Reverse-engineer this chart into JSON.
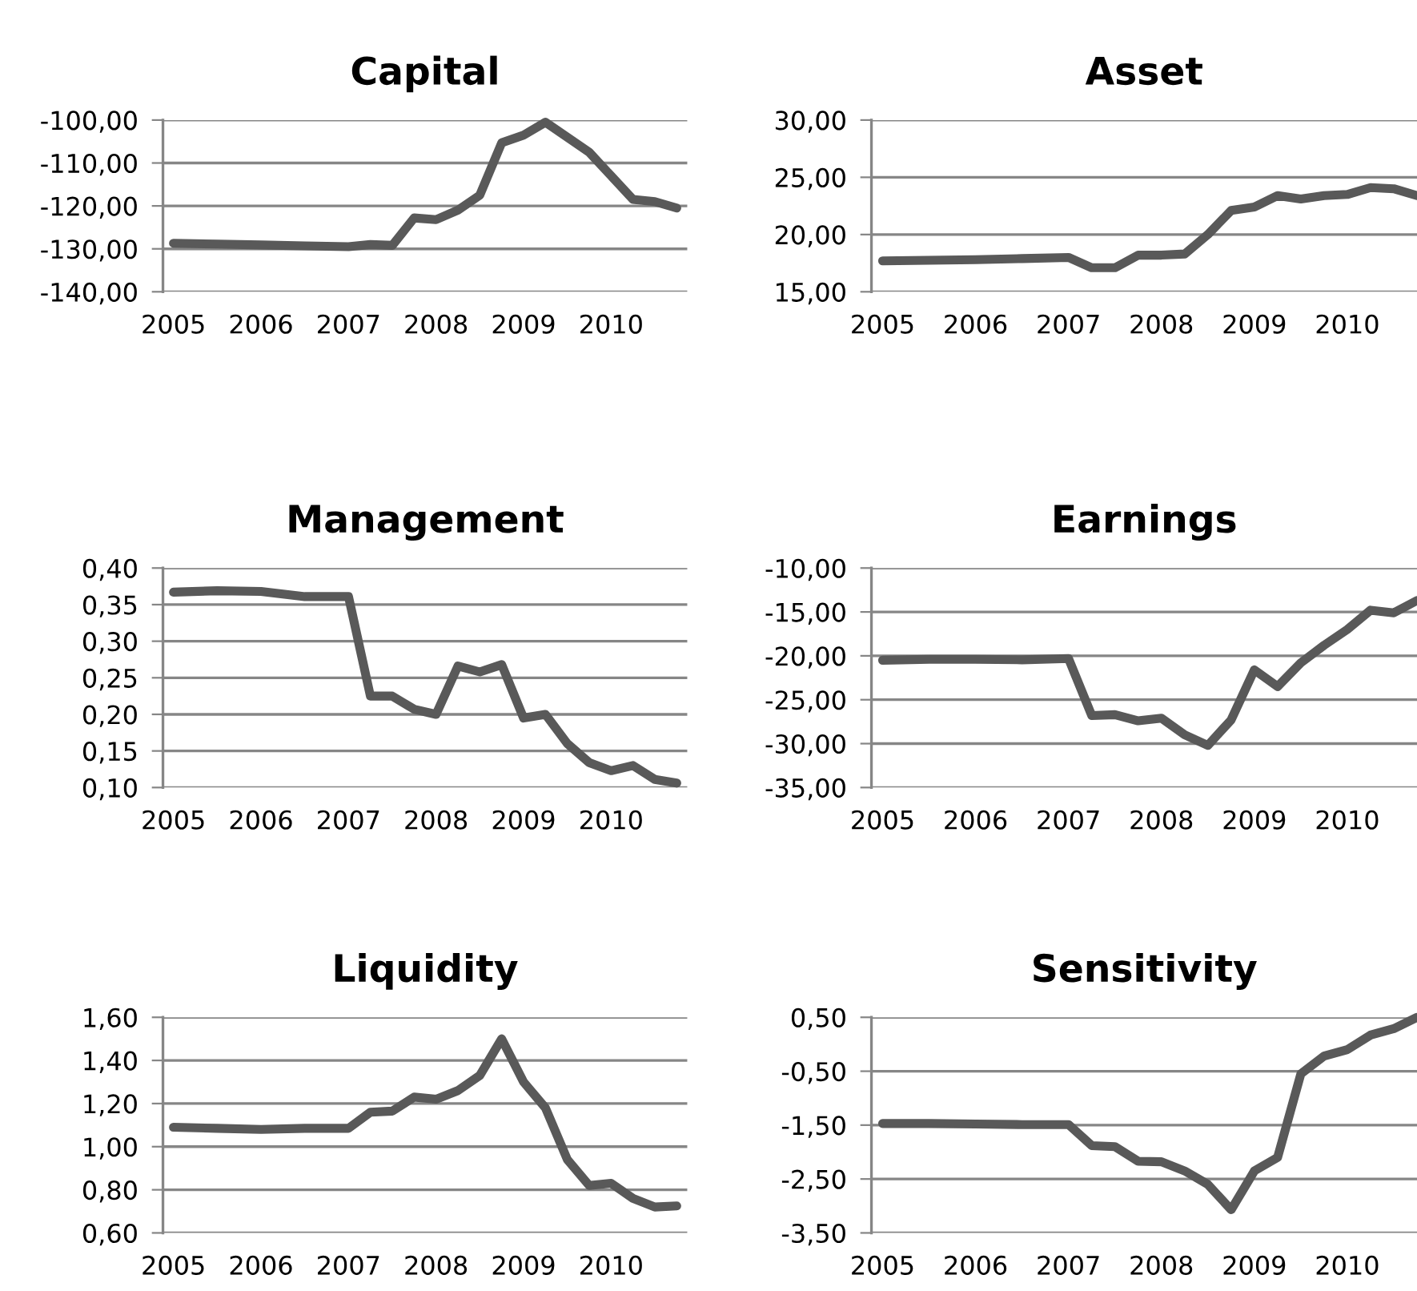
{
  "chart_data": [
    {
      "type": "line",
      "title": "Capital",
      "x": [
        2005,
        2005.5,
        2006,
        2006.5,
        2007,
        2007.25,
        2007.5,
        2007.75,
        2008,
        2008.25,
        2008.5,
        2008.75,
        2009,
        2009.25,
        2009.5,
        2009.75,
        2010,
        2010.25,
        2010.5,
        2010.75
      ],
      "series": [
        {
          "color": "#595959",
          "values": [
            -128.7,
            -128.9,
            -129.1,
            -129.3,
            -129.5,
            -129.0,
            -129.2,
            -122.8,
            -123.2,
            -121.0,
            -117.5,
            -105.3,
            -103.5,
            -100.5,
            -104.0,
            -107.5,
            -113.0,
            -118.5,
            -119.0,
            -120.5
          ]
        }
      ],
      "xlim": [
        2004.88,
        2010.87
      ],
      "xticks": [
        2005,
        2006,
        2007,
        2008,
        2009,
        2010
      ],
      "ylim": [
        -140,
        -100
      ],
      "yticks": [
        {
          "value": -140,
          "label": "-140,00"
        },
        {
          "value": -130,
          "label": "-130,00"
        },
        {
          "value": -120,
          "label": "-120,00"
        },
        {
          "value": -110,
          "label": "-110,00"
        },
        {
          "value": -100,
          "label": "-100,00"
        }
      ],
      "grid": "y",
      "line_style": "solid",
      "marker": "none"
    },
    {
      "type": "line",
      "title": "Asset",
      "x": [
        2005,
        2005.5,
        2006,
        2006.5,
        2007,
        2007.25,
        2007.5,
        2007.75,
        2008,
        2008.25,
        2008.5,
        2008.75,
        2009,
        2009.25,
        2009.5,
        2009.75,
        2010,
        2010.25,
        2010.5,
        2010.75
      ],
      "series": [
        {
          "color": "#595959",
          "values": [
            17.7,
            17.75,
            17.8,
            17.9,
            18.0,
            17.1,
            17.1,
            18.2,
            18.2,
            18.3,
            20.0,
            22.1,
            22.4,
            23.4,
            23.1,
            23.4,
            23.5,
            24.1,
            24.0,
            23.4
          ]
        }
      ],
      "xlim": [
        2004.88,
        2010.75
      ],
      "xticks": [
        2005,
        2006,
        2007,
        2008,
        2009,
        2010
      ],
      "ylim": [
        15,
        30
      ],
      "yticks": [
        {
          "value": 15,
          "label": "15,00"
        },
        {
          "value": 20,
          "label": "20,00"
        },
        {
          "value": 25,
          "label": "25,00"
        },
        {
          "value": 30,
          "label": "30,00"
        }
      ],
      "grid": "y",
      "line_style": "solid",
      "marker": "none"
    },
    {
      "type": "line",
      "title": "Management",
      "x": [
        2005,
        2005.5,
        2006,
        2006.5,
        2007,
        2007.25,
        2007.5,
        2007.75,
        2008,
        2008.25,
        2008.5,
        2008.75,
        2009,
        2009.25,
        2009.5,
        2009.75,
        2010,
        2010.25,
        2010.5,
        2010.75
      ],
      "series": [
        {
          "color": "#595959",
          "values": [
            0.367,
            0.369,
            0.368,
            0.361,
            0.361,
            0.225,
            0.225,
            0.207,
            0.2,
            0.266,
            0.258,
            0.268,
            0.195,
            0.2,
            0.16,
            0.134,
            0.123,
            0.13,
            0.111,
            0.106
          ]
        }
      ],
      "xlim": [
        2004.88,
        2010.87
      ],
      "xticks": [
        2005,
        2006,
        2007,
        2008,
        2009,
        2010
      ],
      "ylim": [
        0.1,
        0.4
      ],
      "yticks": [
        {
          "value": 0.1,
          "label": "0,10"
        },
        {
          "value": 0.15,
          "label": "0,15"
        },
        {
          "value": 0.2,
          "label": "0,20"
        },
        {
          "value": 0.25,
          "label": "0,25"
        },
        {
          "value": 0.3,
          "label": "0,30"
        },
        {
          "value": 0.35,
          "label": "0,35"
        },
        {
          "value": 0.4,
          "label": "0,40"
        }
      ],
      "grid": "y",
      "line_style": "solid",
      "marker": "none"
    },
    {
      "type": "line",
      "title": "Earnings",
      "x": [
        2005,
        2005.5,
        2006,
        2006.5,
        2007,
        2007.25,
        2007.5,
        2007.75,
        2008,
        2008.25,
        2008.5,
        2008.75,
        2009,
        2009.25,
        2009.5,
        2009.75,
        2010,
        2010.25,
        2010.5,
        2010.75
      ],
      "series": [
        {
          "color": "#595959",
          "values": [
            -20.5,
            -20.4,
            -20.4,
            -20.45,
            -20.3,
            -26.8,
            -26.7,
            -27.4,
            -27.1,
            -29.0,
            -30.2,
            -27.3,
            -21.6,
            -23.5,
            -20.8,
            -18.8,
            -17.0,
            -14.8,
            -15.1,
            -13.7
          ]
        }
      ],
      "xlim": [
        2004.88,
        2010.75
      ],
      "xticks": [
        2005,
        2006,
        2007,
        2008,
        2009,
        2010
      ],
      "ylim": [
        -35,
        -10
      ],
      "yticks": [
        {
          "value": -35,
          "label": "-35,00"
        },
        {
          "value": -30,
          "label": "-30,00"
        },
        {
          "value": -25,
          "label": "-25,00"
        },
        {
          "value": -20,
          "label": "-20,00"
        },
        {
          "value": -15,
          "label": "-15,00"
        },
        {
          "value": -10,
          "label": "-10,00"
        }
      ],
      "grid": "y",
      "line_style": "solid",
      "marker": "none"
    },
    {
      "type": "line",
      "title": "Liquidity",
      "x": [
        2005,
        2005.5,
        2006,
        2006.5,
        2007,
        2007.25,
        2007.5,
        2007.75,
        2008,
        2008.25,
        2008.5,
        2008.75,
        2009,
        2009.25,
        2009.5,
        2009.75,
        2010,
        2010.25,
        2010.5,
        2010.75
      ],
      "series": [
        {
          "color": "#595959",
          "values": [
            1.09,
            1.085,
            1.08,
            1.085,
            1.085,
            1.16,
            1.165,
            1.23,
            1.22,
            1.26,
            1.33,
            1.5,
            1.3,
            1.18,
            0.94,
            0.82,
            0.83,
            0.76,
            0.72,
            0.725
          ]
        }
      ],
      "xlim": [
        2004.88,
        2010.87
      ],
      "xticks": [
        2005,
        2006,
        2007,
        2008,
        2009,
        2010
      ],
      "ylim": [
        0.6,
        1.6
      ],
      "yticks": [
        {
          "value": 0.6,
          "label": "0,60"
        },
        {
          "value": 0.8,
          "label": "0,80"
        },
        {
          "value": 1.0,
          "label": "1,00"
        },
        {
          "value": 1.2,
          "label": "1,20"
        },
        {
          "value": 1.4,
          "label": "1,40"
        },
        {
          "value": 1.6,
          "label": "1,60"
        }
      ],
      "grid": "y",
      "line_style": "solid",
      "marker": "none"
    },
    {
      "type": "line",
      "title": "Sensitivity",
      "x": [
        2005,
        2005.5,
        2006,
        2006.5,
        2007,
        2007.25,
        2007.5,
        2007.75,
        2008,
        2008.25,
        2008.5,
        2008.75,
        2009,
        2009.25,
        2009.5,
        2009.75,
        2010,
        2010.25,
        2010.5,
        2010.75
      ],
      "series": [
        {
          "color": "#595959",
          "values": [
            -1.47,
            -1.47,
            -1.48,
            -1.49,
            -1.49,
            -1.88,
            -1.9,
            -2.17,
            -2.18,
            -2.35,
            -2.6,
            -3.07,
            -2.35,
            -2.1,
            -0.55,
            -0.22,
            -0.1,
            0.17,
            0.29,
            0.5
          ]
        }
      ],
      "xlim": [
        2004.88,
        2010.75
      ],
      "xticks": [
        2005,
        2006,
        2007,
        2008,
        2009,
        2010
      ],
      "ylim": [
        -3.5,
        0.5
      ],
      "yticks": [
        {
          "value": -3.5,
          "label": "-3,50"
        },
        {
          "value": -2.5,
          "label": "-2,50"
        },
        {
          "value": -1.5,
          "label": "-1,50"
        },
        {
          "value": -0.5,
          "label": "-0,50"
        },
        {
          "value": 0.5,
          "label": "0,50"
        }
      ],
      "grid": "y",
      "line_style": "solid",
      "marker": "none"
    }
  ]
}
